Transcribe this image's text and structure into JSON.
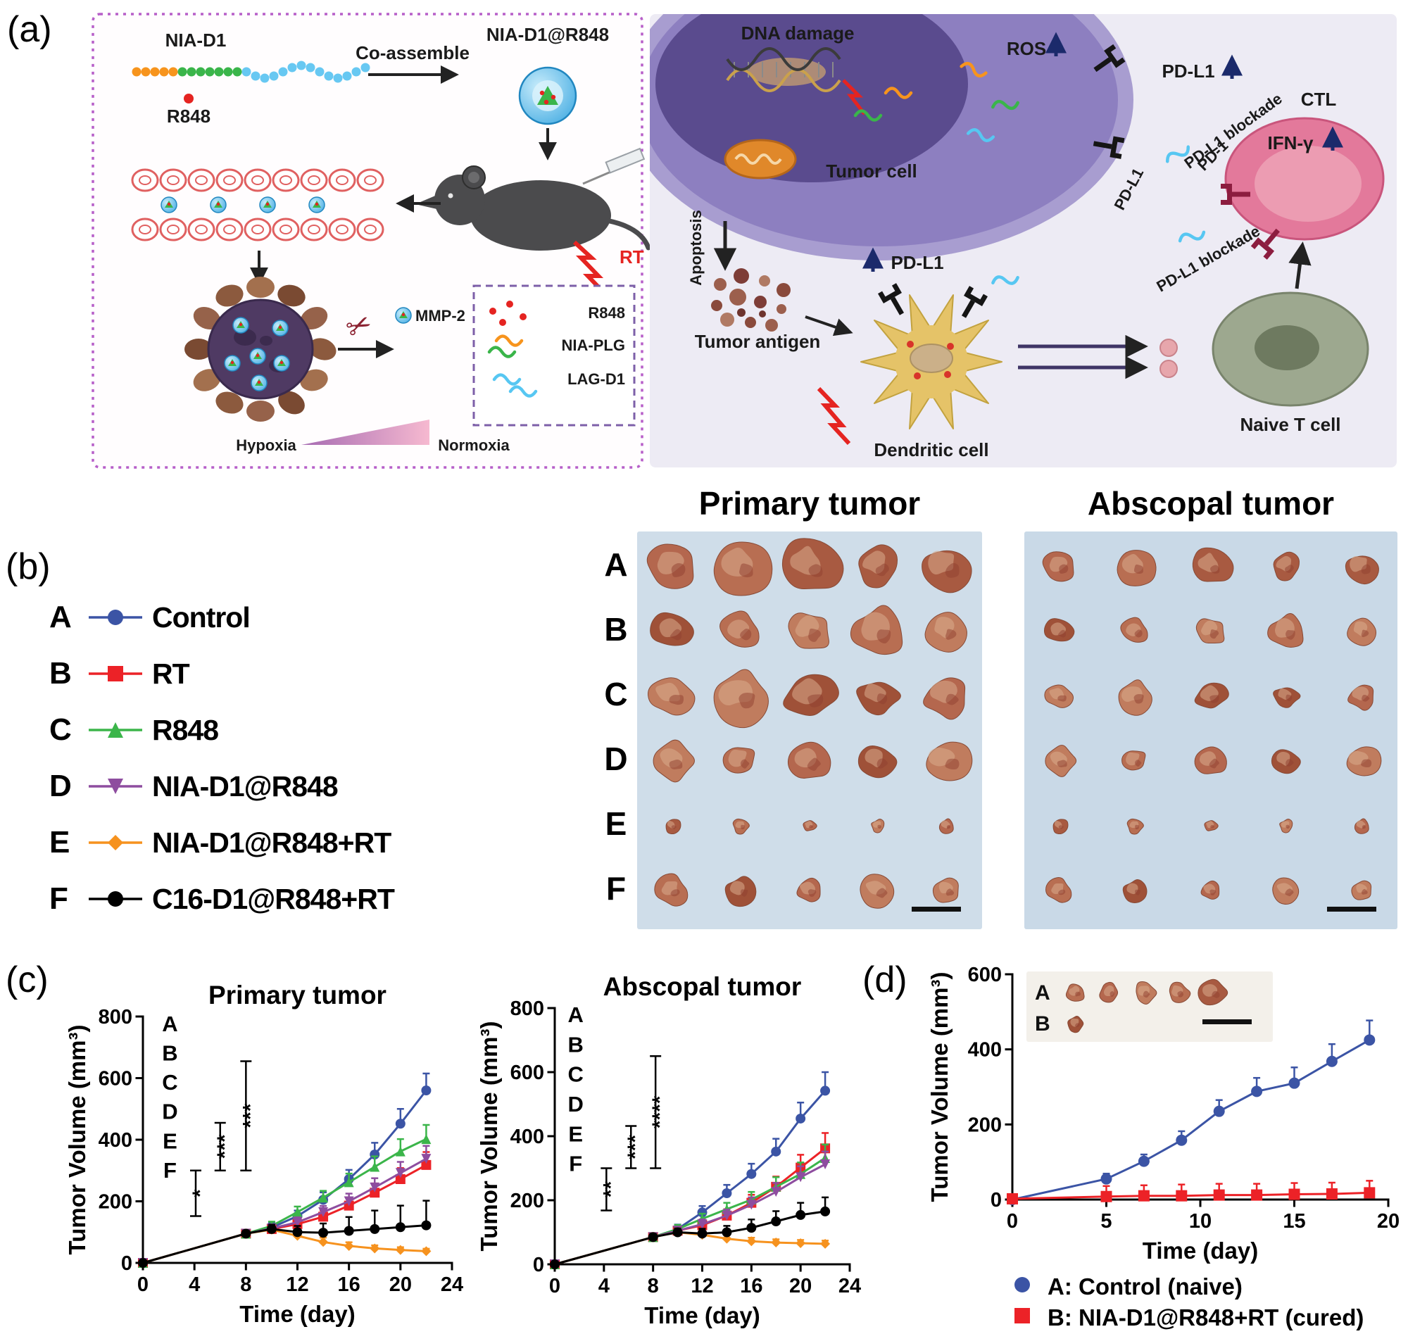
{
  "panel_labels": {
    "a": "(a)",
    "b": "(b)",
    "c": "(c)",
    "d": "(d)"
  },
  "panel_a": {
    "nia_d1": "NIA-D1",
    "r848": "R848",
    "co_assemble": "Co-assemble",
    "nia_d1_r848": "NIA-D1@R848",
    "rt": "RT",
    "mmp2": "MMP-2",
    "release_r848": "R848",
    "release_nia_plg": "NIA-PLG",
    "release_lag_d1": "LAG-D1",
    "hypoxia": "Hypoxia",
    "normoxia": "Normoxia",
    "dna_damage": "DNA damage",
    "ros": "ROS",
    "pd_l1_up": "PD-L1",
    "pd_l1": "PD-L1",
    "tumor_cell": "Tumor cell",
    "pd_l1_blockade_1": "PD-L1 blockade",
    "pd_l1_blockade_2": "PD-L1 blockade",
    "pd_1": "PD-1",
    "ctl": "CTL",
    "ifn_gamma": "IFN-γ",
    "apoptosis": "Apoptosis",
    "tumor_antigen": "Tumor antigen",
    "dendritic_cell": "Dendritic cell",
    "naive_t_cell": "Naive T cell",
    "dc_pd_l1": "PD-L1"
  },
  "panel_b": {
    "primary_title": "Primary tumor",
    "abscopal_title": "Abscopal tumor",
    "row_labels": [
      "A",
      "B",
      "C",
      "D",
      "E",
      "F"
    ],
    "legend": [
      {
        "key": "A",
        "label": "Control",
        "color": "#3b54a5",
        "marker": "circle"
      },
      {
        "key": "B",
        "label": "RT",
        "color": "#ec2227",
        "marker": "square"
      },
      {
        "key": "C",
        "label": "R848",
        "color": "#3bb54a",
        "marker": "triangle"
      },
      {
        "key": "D",
        "label": "NIA-D1@R848",
        "color": "#8e4d9f",
        "marker": "triangle-down"
      },
      {
        "key": "E",
        "label": "NIA-D1@R848+RT",
        "color": "#f6921e",
        "marker": "diamond"
      },
      {
        "key": "F",
        "label": "C16-D1@R848+RT",
        "color": "#000000",
        "marker": "circle"
      }
    ],
    "photos": [
      {
        "id": "primary",
        "bg": "#cfdde9",
        "scalebar": true,
        "rows": [
          {
            "count": 5,
            "size": 36
          },
          {
            "count": 5,
            "size": 32
          },
          {
            "count": 5,
            "size": 36
          },
          {
            "count": 5,
            "size": 28
          },
          {
            "count": 5,
            "size": 11
          },
          {
            "count": 5,
            "size": 22
          }
        ]
      },
      {
        "id": "abscopal",
        "bg": "#c9d9e7",
        "scalebar": true,
        "rows": [
          {
            "count": 5,
            "size": 24
          },
          {
            "count": 5,
            "size": 22
          },
          {
            "count": 5,
            "size": 22
          },
          {
            "count": 5,
            "size": 21
          },
          {
            "count": 5,
            "size": 11
          },
          {
            "count": 5,
            "size": 17
          }
        ]
      }
    ],
    "blob_colors": [
      "#b4674e",
      "#a85a41",
      "#c07c5e",
      "#9f5138",
      "#b86e52"
    ]
  },
  "panel_d": {
    "legend": [
      {
        "label": "A: Control (naive)",
        "color": "#3b54a5",
        "marker": "circle"
      },
      {
        "label": "B: NIA-D1@R848+RT (cured)",
        "color": "#ec2227",
        "marker": "square"
      }
    ],
    "inset": {
      "bg": "#f3f0ea",
      "seed": 7,
      "row_labels": [
        "A",
        "B"
      ],
      "padT": 30,
      "padB": 26,
      "padL": 70,
      "padR": 85,
      "scalebar": true,
      "rows": [
        {
          "count": 5,
          "size": 16
        },
        {
          "count": 1,
          "size": 12
        }
      ]
    }
  },
  "chart_data": [
    {
      "id": "c-primary",
      "type": "line",
      "title": "Primary tumor",
      "xlabel": "Time (day)",
      "ylabel": "Tumor Volume (mm³)",
      "xlim": [
        0,
        24
      ],
      "ylim": [
        0,
        800
      ],
      "xticks": [
        0,
        4,
        8,
        12,
        16,
        20,
        24
      ],
      "yticks": [
        0,
        200,
        400,
        600,
        800
      ],
      "x": [
        0,
        8,
        10,
        12,
        14,
        16,
        18,
        20,
        22
      ],
      "msize": 7,
      "series": [
        {
          "name": "A",
          "label": "Control",
          "color": "#3b54a5",
          "marker": "circle",
          "values": [
            0,
            95,
            115,
            152,
            205,
            272,
            352,
            452,
            560
          ],
          "err": [
            0,
            10,
            14,
            18,
            24,
            30,
            38,
            48,
            55
          ]
        },
        {
          "name": "B",
          "label": "RT",
          "color": "#ec2227",
          "marker": "square",
          "values": [
            0,
            95,
            110,
            126,
            150,
            186,
            228,
            272,
            318
          ],
          "err": [
            0,
            10,
            13,
            16,
            20,
            24,
            30,
            36,
            42
          ]
        },
        {
          "name": "C",
          "label": "R848",
          "color": "#3bb54a",
          "marker": "triangle",
          "values": [
            0,
            95,
            120,
            165,
            212,
            262,
            312,
            362,
            402
          ],
          "err": [
            0,
            10,
            14,
            18,
            22,
            28,
            34,
            40,
            46
          ]
        },
        {
          "name": "D",
          "label": "NIA-D1@R848",
          "color": "#8e4d9f",
          "marker": "triangle-down",
          "values": [
            0,
            95,
            112,
            132,
            165,
            200,
            245,
            292,
            338
          ],
          "err": [
            0,
            10,
            13,
            16,
            20,
            25,
            30,
            36,
            42
          ]
        },
        {
          "name": "E",
          "label": "NIA-D1@R848+RT",
          "color": "#f6921e",
          "marker": "diamond",
          "values": [
            0,
            95,
            108,
            88,
            68,
            55,
            47,
            42,
            38
          ],
          "err": [
            0,
            10,
            12,
            14,
            14,
            12,
            10,
            9,
            8
          ]
        },
        {
          "name": "F",
          "label": "C16-D1@R848+RT",
          "color": "#000000",
          "marker": "circle",
          "values": [
            0,
            95,
            110,
            100,
            98,
            104,
            110,
            116,
            122
          ],
          "err": [
            0,
            10,
            14,
            20,
            30,
            45,
            60,
            70,
            80
          ]
        }
      ],
      "letters": [
        "A",
        "B",
        "C",
        "D",
        "E",
        "F"
      ],
      "letters_pos": {
        "x": 2.1,
        "ytop": 752,
        "dy": 95
      },
      "annotations": [
        {
          "x": 4.1,
          "y1": 152,
          "y2": 300,
          "text": "*"
        },
        {
          "x": 6.0,
          "y1": 300,
          "y2": 455,
          "text": "***"
        },
        {
          "x": 8.0,
          "y1": 300,
          "y2": 655,
          "text": "***"
        }
      ]
    },
    {
      "id": "c-abscopal",
      "type": "line",
      "title": "Abscopal tumor",
      "xlabel": "Time (day)",
      "ylabel": "Tumor Volume (mm³)",
      "xlim": [
        0,
        24
      ],
      "ylim": [
        0,
        800
      ],
      "xticks": [
        0,
        4,
        8,
        12,
        16,
        20,
        24
      ],
      "yticks": [
        0,
        200,
        400,
        600,
        800
      ],
      "x": [
        0,
        8,
        10,
        12,
        14,
        16,
        18,
        20,
        22
      ],
      "msize": 7,
      "series": [
        {
          "name": "A",
          "label": "Control",
          "color": "#3b54a5",
          "marker": "circle",
          "values": [
            0,
            85,
            110,
            162,
            222,
            282,
            352,
            455,
            542
          ],
          "err": [
            0,
            10,
            14,
            20,
            26,
            32,
            40,
            50,
            58
          ]
        },
        {
          "name": "B",
          "label": "RT",
          "color": "#ec2227",
          "marker": "square",
          "values": [
            0,
            85,
            105,
            122,
            152,
            192,
            242,
            302,
            362
          ],
          "err": [
            0,
            10,
            13,
            16,
            20,
            25,
            32,
            40,
            48
          ]
        },
        {
          "name": "C",
          "label": "R848",
          "color": "#3bb54a",
          "marker": "triangle",
          "values": [
            0,
            85,
            110,
            142,
            172,
            202,
            242,
            282,
            332
          ],
          "err": [
            0,
            10,
            13,
            16,
            20,
            24,
            30,
            36,
            42
          ]
        },
        {
          "name": "D",
          "label": "NIA-D1@R848",
          "color": "#8e4d9f",
          "marker": "triangle-down",
          "values": [
            0,
            85,
            105,
            125,
            152,
            186,
            226,
            272,
            312
          ],
          "err": [
            0,
            10,
            12,
            15,
            19,
            23,
            28,
            34,
            40
          ]
        },
        {
          "name": "E",
          "label": "NIA-D1@R848+RT",
          "color": "#f6921e",
          "marker": "diamond",
          "values": [
            0,
            85,
            100,
            92,
            80,
            72,
            68,
            66,
            64
          ],
          "err": [
            0,
            10,
            12,
            12,
            12,
            11,
            10,
            10,
            10
          ]
        },
        {
          "name": "F",
          "label": "C16-D1@R848+RT",
          "color": "#000000",
          "marker": "circle",
          "values": [
            0,
            85,
            100,
            96,
            100,
            114,
            134,
            154,
            165
          ],
          "err": [
            0,
            10,
            12,
            15,
            20,
            26,
            32,
            38,
            44
          ]
        }
      ],
      "letters": [
        "A",
        "B",
        "C",
        "D",
        "E",
        "F"
      ],
      "letters_pos": {
        "x": 1.7,
        "ytop": 756,
        "dy": 93
      },
      "annotations": [
        {
          "x": 4.2,
          "y1": 168,
          "y2": 300,
          "text": "**"
        },
        {
          "x": 6.2,
          "y1": 300,
          "y2": 432,
          "text": "***"
        },
        {
          "x": 8.2,
          "y1": 300,
          "y2": 650,
          "text": "****"
        }
      ]
    },
    {
      "id": "d-chart",
      "type": "line",
      "title": "",
      "xlabel": "Time (day)",
      "ylabel": "Tumor Volume (mm³)",
      "xlim": [
        0,
        20
      ],
      "ylim": [
        0,
        600
      ],
      "ml": 118,
      "xticks": [
        0,
        5,
        10,
        15,
        20
      ],
      "yticks": [
        0,
        200,
        400,
        600
      ],
      "x": [
        0,
        5,
        7,
        9,
        11,
        13,
        15,
        17,
        19
      ],
      "msize": 8,
      "series": [
        {
          "name": "A",
          "label": "A: Control (naive)",
          "color": "#3b54a5",
          "marker": "circle",
          "values": [
            0,
            55,
            102,
            158,
            235,
            288,
            310,
            368,
            425
          ],
          "err": [
            0,
            14,
            18,
            24,
            30,
            36,
            42,
            46,
            52
          ]
        },
        {
          "name": "B",
          "label": "B: NIA-D1@R848+RT (cured)",
          "color": "#ec2227",
          "marker": "square",
          "values": [
            2,
            8,
            10,
            10,
            12,
            12,
            14,
            15,
            18
          ],
          "err": [
            2,
            28,
            28,
            30,
            30,
            30,
            30,
            30,
            32
          ]
        }
      ]
    }
  ]
}
